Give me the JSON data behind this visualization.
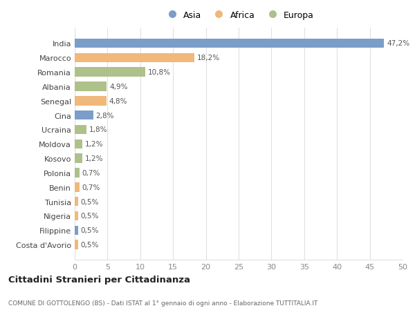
{
  "countries": [
    "India",
    "Marocco",
    "Romania",
    "Albania",
    "Senegal",
    "Cina",
    "Ucraina",
    "Moldova",
    "Kosovo",
    "Polonia",
    "Benin",
    "Tunisia",
    "Nigeria",
    "Filippine",
    "Costa d'Avorio"
  ],
  "values": [
    47.2,
    18.2,
    10.8,
    4.9,
    4.8,
    2.8,
    1.8,
    1.2,
    1.2,
    0.7,
    0.7,
    0.5,
    0.5,
    0.5,
    0.5
  ],
  "labels": [
    "47,2%",
    "18,2%",
    "10,8%",
    "4,9%",
    "4,8%",
    "2,8%",
    "1,8%",
    "1,2%",
    "1,2%",
    "0,7%",
    "0,7%",
    "0,5%",
    "0,5%",
    "0,5%",
    "0,5%"
  ],
  "colors": [
    "#7b9dc9",
    "#f0b87a",
    "#aec18a",
    "#aec18a",
    "#f0b87a",
    "#7b9dc9",
    "#aec18a",
    "#aec18a",
    "#aec18a",
    "#aec18a",
    "#f0b87a",
    "#f0b87a",
    "#f0b87a",
    "#7b9dc9",
    "#f0b87a"
  ],
  "legend_labels": [
    "Asia",
    "Africa",
    "Europa"
  ],
  "legend_colors": [
    "#7b9dc9",
    "#f0b87a",
    "#aec18a"
  ],
  "title": "Cittadini Stranieri per Cittadinanza",
  "subtitle": "COMUNE DI GOTTOLENGO (BS) - Dati ISTAT al 1° gennaio di ogni anno - Elaborazione TUTTITALIA.IT",
  "xlim": [
    0,
    50
  ],
  "xticks": [
    0,
    5,
    10,
    15,
    20,
    25,
    30,
    35,
    40,
    45,
    50
  ],
  "background_color": "#ffffff",
  "grid_color": "#e0e0e0"
}
